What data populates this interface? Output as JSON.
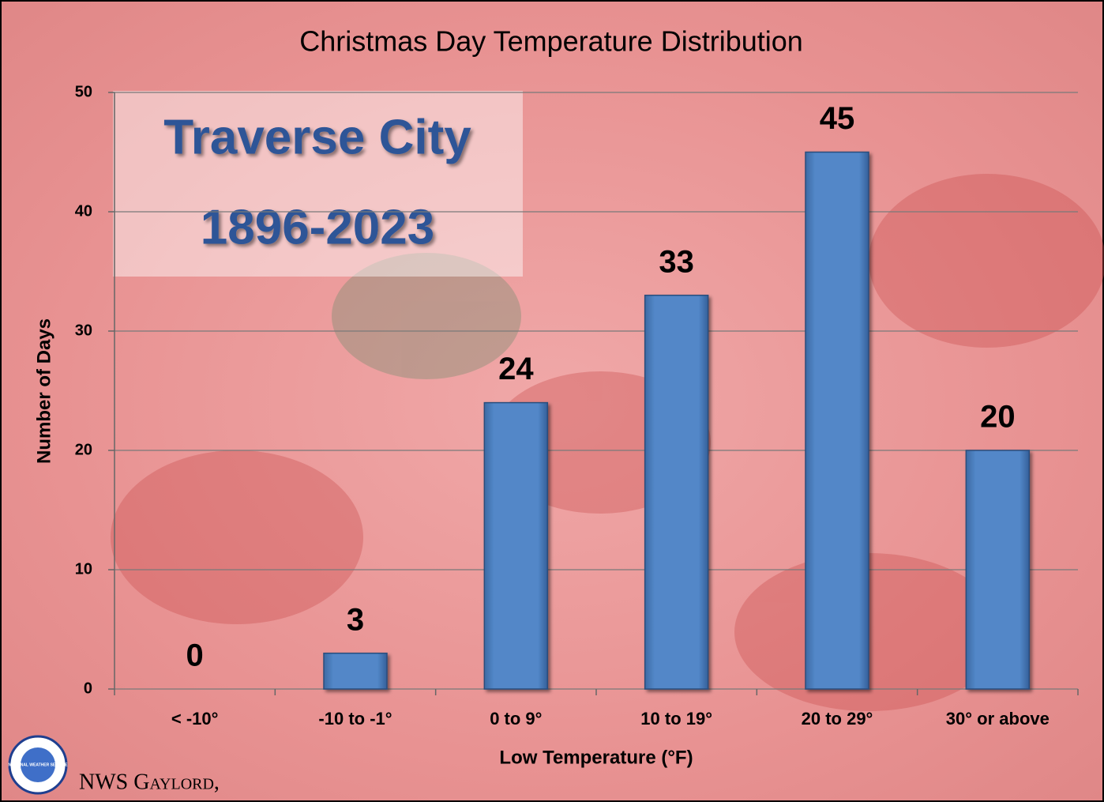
{
  "chart_data": {
    "type": "bar",
    "title": "Christmas Day Temperature Distribution",
    "x_label": "Low Temperature (°F)",
    "y_label": "Number of Days",
    "annotations": [
      "Traverse City",
      "1896-2023"
    ],
    "credit": "NWS Gaylord,",
    "logo_text": "NATIONAL WEATHER SERVICE",
    "categories": [
      "< -10°",
      "-10 to -1°",
      "0 to 9°",
      "10 to 19°",
      "20 to 29°",
      "30° or above"
    ],
    "values": [
      0,
      3,
      24,
      33,
      45,
      20
    ],
    "color": "#4f81bd",
    "ylim": [
      0,
      50
    ],
    "yticks": [
      0,
      10,
      20,
      30,
      40,
      50
    ],
    "grid": true
  }
}
